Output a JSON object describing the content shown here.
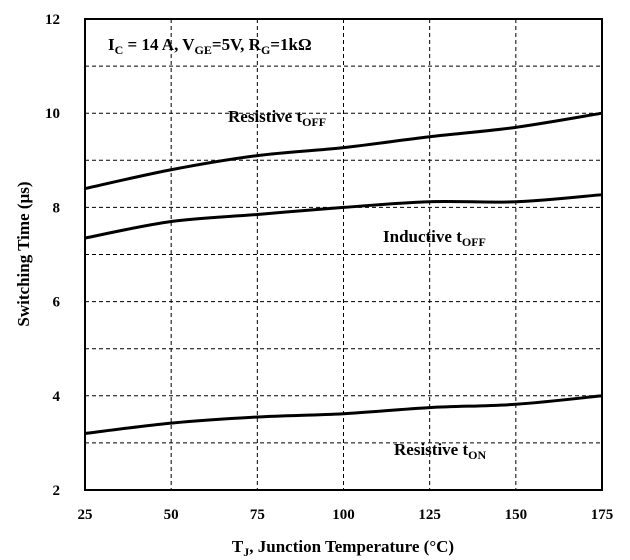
{
  "chart_data": {
    "type": "line",
    "title": "",
    "xlabel": {
      "main": "T",
      "sub": "J",
      "rest": ", Junction Temperature (°C)"
    },
    "ylabel": "Switching Time (µs)",
    "xlim": [
      25,
      175
    ],
    "ylim": [
      2,
      12
    ],
    "x_ticks": [
      25,
      50,
      75,
      100,
      125,
      150,
      175
    ],
    "y_ticks": [
      2,
      4,
      6,
      8,
      10,
      12
    ],
    "grid": "dashed",
    "legend": "none",
    "annotation": {
      "parts": [
        {
          "t": "I"
        },
        {
          "t": "C",
          "sub": true
        },
        {
          "t": " = 14 A, V"
        },
        {
          "t": "GE",
          "sub": true
        },
        {
          "t": "=5V, R"
        },
        {
          "t": "G",
          "sub": true
        },
        {
          "t": "=1kΩ"
        }
      ]
    },
    "series": [
      {
        "label_main": "Resistive t",
        "label_sub": "OFF",
        "x": [
          25,
          50,
          75,
          100,
          125,
          150,
          175
        ],
        "y": [
          8.4,
          8.8,
          9.1,
          9.27,
          9.5,
          9.7,
          10.0
        ]
      },
      {
        "label_main": "Inductive t",
        "label_sub": "OFF",
        "x": [
          25,
          50,
          75,
          100,
          125,
          150,
          175
        ],
        "y": [
          7.35,
          7.7,
          7.85,
          8.0,
          8.12,
          8.12,
          8.27
        ]
      },
      {
        "label_main": "Resistive t",
        "label_sub": "ON",
        "x": [
          25,
          50,
          75,
          100,
          125,
          150,
          175
        ],
        "y": [
          3.2,
          3.42,
          3.55,
          3.62,
          3.75,
          3.82,
          4.0
        ]
      }
    ],
    "colors": {
      "line": "#000000",
      "grid": "#000000",
      "background": "#ffffff"
    }
  }
}
